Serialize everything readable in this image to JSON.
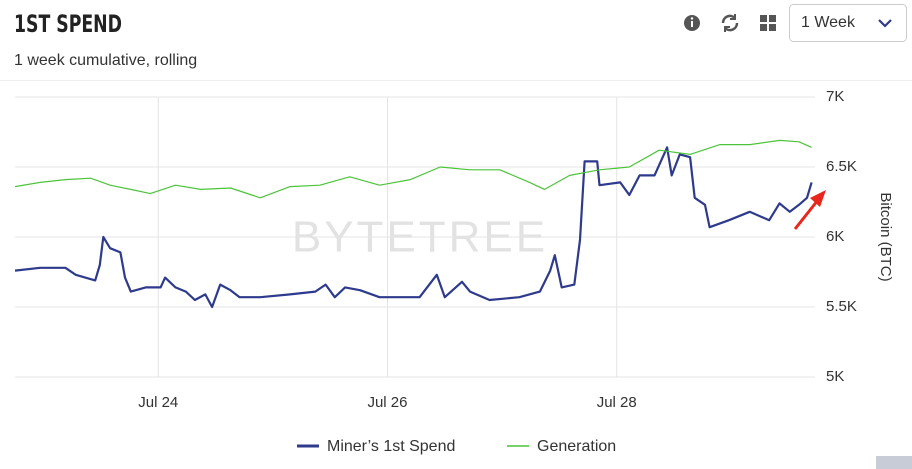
{
  "header": {
    "title": "1ST SPEND",
    "subtitle": "1 week cumulative, rolling",
    "range_select": "1 Week"
  },
  "chart_data": {
    "type": "line",
    "watermark": "BYTETREE",
    "ylabel": "Bitcoin (BTC)",
    "xlim": [
      22.75,
      29.73
    ],
    "xticks": [
      {
        "value": 24,
        "label": "Jul 24"
      },
      {
        "value": 26,
        "label": "Jul 26"
      },
      {
        "value": 28,
        "label": "Jul 28"
      }
    ],
    "ylim": [
      5000,
      7000
    ],
    "yticks": [
      {
        "value": 5000,
        "label": "5K"
      },
      {
        "value": 5500,
        "label": "5.5K"
      },
      {
        "value": 6000,
        "label": "6K"
      },
      {
        "value": 6500,
        "label": "6.5K"
      },
      {
        "value": 7000,
        "label": "7K"
      }
    ],
    "grid": true,
    "series": [
      {
        "name": "Miner’s 1st Spend",
        "color": "#2e3a8c",
        "x": [
          22.75,
          22.97,
          23.19,
          23.28,
          23.45,
          23.49,
          23.52,
          23.58,
          23.67,
          23.71,
          23.76,
          23.89,
          24.02,
          24.06,
          24.15,
          24.24,
          24.32,
          24.41,
          24.47,
          24.54,
          24.63,
          24.71,
          24.89,
          25.15,
          25.37,
          25.46,
          25.54,
          25.63,
          25.76,
          25.93,
          26.28,
          26.43,
          26.5,
          26.65,
          26.72,
          26.89,
          27.15,
          27.33,
          27.42,
          27.46,
          27.52,
          27.63,
          27.68,
          27.72,
          27.83,
          27.85,
          28.03,
          28.11,
          28.2,
          28.33,
          28.44,
          28.48,
          28.55,
          28.64,
          28.68,
          28.77,
          28.81,
          28.98,
          29.16,
          29.33,
          29.42,
          29.51,
          29.59,
          29.66,
          29.7
        ],
        "values": [
          5760,
          5780,
          5780,
          5730,
          5690,
          5800,
          6000,
          5920,
          5890,
          5710,
          5610,
          5640,
          5640,
          5710,
          5640,
          5610,
          5550,
          5590,
          5500,
          5660,
          5620,
          5570,
          5570,
          5590,
          5610,
          5660,
          5570,
          5640,
          5620,
          5570,
          5570,
          5730,
          5570,
          5680,
          5610,
          5550,
          5570,
          5610,
          5760,
          5870,
          5640,
          5660,
          5980,
          6540,
          6540,
          6370,
          6390,
          6300,
          6440,
          6440,
          6640,
          6440,
          6590,
          6570,
          6280,
          6230,
          6070,
          6120,
          6180,
          6120,
          6240,
          6180,
          6230,
          6280,
          6390
        ]
      },
      {
        "name": "Generation",
        "color": "#4cc43a",
        "x": [
          22.75,
          22.97,
          23.19,
          23.41,
          23.58,
          23.76,
          23.93,
          24.15,
          24.37,
          24.63,
          24.89,
          25.15,
          25.41,
          25.67,
          25.93,
          26.2,
          26.46,
          26.72,
          26.98,
          27.24,
          27.37,
          27.59,
          27.85,
          28.11,
          28.37,
          28.64,
          28.9,
          29.16,
          29.42,
          29.59,
          29.7
        ],
        "values": [
          6360,
          6390,
          6410,
          6420,
          6370,
          6340,
          6310,
          6370,
          6340,
          6350,
          6280,
          6360,
          6370,
          6430,
          6370,
          6410,
          6500,
          6480,
          6480,
          6390,
          6340,
          6440,
          6480,
          6500,
          6620,
          6590,
          6660,
          6660,
          6690,
          6680,
          6640
        ]
      }
    ]
  }
}
